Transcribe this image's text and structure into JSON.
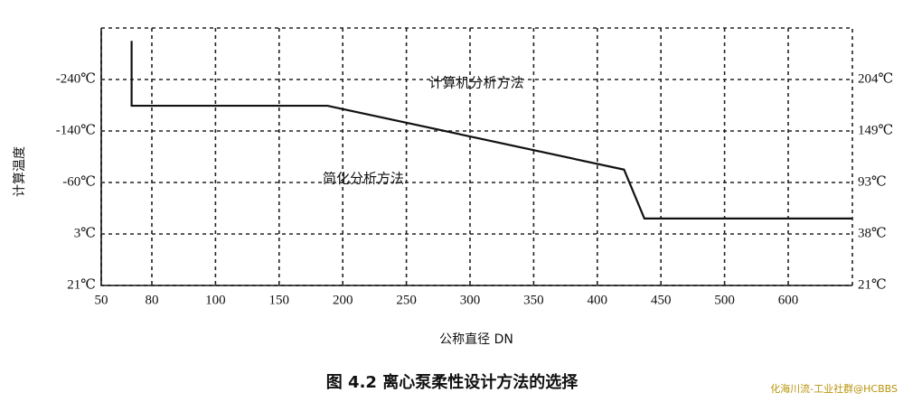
{
  "chart_data": {
    "type": "line",
    "caption": "图 4.2  离心泵柔性设计方法的选择",
    "watermark": "化海川流-工业社群@HCBBS",
    "xlabel": "公称直径 DN",
    "ylabel": "计算温度",
    "annotations": [
      "计算机分析方法",
      "简化分析方法"
    ],
    "x": [
      68,
      68,
      188,
      421,
      437,
      700
    ],
    "values": [
      4.75,
      3.49,
      3.49,
      2.25,
      1.3,
      1.3
    ],
    "color": "#111111",
    "xlim": [
      50,
      700
    ],
    "xticks": [
      50,
      80,
      100,
      150,
      200,
      250,
      300,
      350,
      400,
      450,
      500,
      600
    ],
    "ylim": [
      0,
      5
    ],
    "yticks": [
      {
        "value": 0,
        "label": "21℃"
      },
      {
        "value": 1,
        "label": "3℃"
      },
      {
        "value": 2,
        "label": "-60℃"
      },
      {
        "value": 3,
        "label": "-140℃"
      },
      {
        "value": 4,
        "label": "-240℃"
      }
    ],
    "y2lim": [
      0,
      5
    ],
    "y2ticks": [
      {
        "value": 0,
        "label": "21℃"
      },
      {
        "value": 1,
        "label": "38℃"
      },
      {
        "value": 2,
        "label": "93℃"
      },
      {
        "value": 3,
        "label": "149℃"
      },
      {
        "value": 4,
        "label": "204℃"
      }
    ],
    "grid": true
  }
}
